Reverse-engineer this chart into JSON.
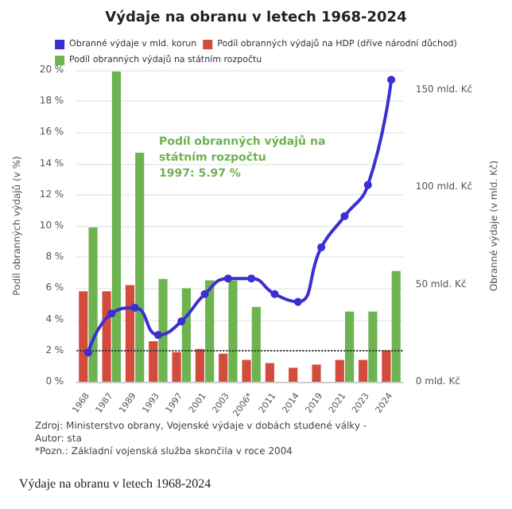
{
  "chart_data": {
    "type": "bar",
    "title": "Výdaje na obranu v letech 1968-2024",
    "ylabel": "Podíl obranných výdajů (v %)",
    "y2label": "Obranné výdaje (v mld. Kč)",
    "categories": [
      "1968",
      "1987",
      "1989",
      "1993",
      "1997",
      "2001",
      "2003",
      "2006*",
      "2011",
      "2014",
      "2019",
      "2021",
      "2023",
      "2024"
    ],
    "series": [
      {
        "name": "Obranné výdaje v mld. korun",
        "type": "line",
        "axis": "y2",
        "color": "#3b2fd3",
        "values": [
          15,
          35,
          38,
          24,
          31,
          45,
          53,
          53,
          45,
          41,
          69,
          85,
          101,
          155
        ]
      },
      {
        "name": "Podíl obranných výdajů na HDP (dříve národní důchod)",
        "color": "#d24b3c",
        "values": [
          5.8,
          5.8,
          6.2,
          2.6,
          1.9,
          2.1,
          1.8,
          1.4,
          1.2,
          0.9,
          1.1,
          1.4,
          1.4,
          2.0
        ]
      },
      {
        "name": "Podíl obranných výdajů na státním rozpočtu",
        "color": "#6db34f",
        "values": [
          9.9,
          19.9,
          14.7,
          6.6,
          6.0,
          6.5,
          6.5,
          4.8,
          null,
          null,
          null,
          4.5,
          4.5,
          7.1
        ]
      }
    ],
    "ylim": [
      0,
      20
    ],
    "yticks": [
      {
        "value": 0,
        "label": "0 %"
      },
      {
        "value": 2,
        "label": "2 %"
      },
      {
        "value": 4,
        "label": "4 %"
      },
      {
        "value": 6,
        "label": "6 %"
      },
      {
        "value": 8,
        "label": "8 %"
      },
      {
        "value": 10,
        "label": "10 %"
      },
      {
        "value": 12,
        "label": "12 %"
      },
      {
        "value": 14,
        "label": "14 %"
      },
      {
        "value": 16,
        "label": "16 %"
      },
      {
        "value": 18,
        "label": "18 %"
      },
      {
        "value": 20,
        "label": "20 %"
      }
    ],
    "y2lim": [
      0,
      160
    ],
    "y2ticks": [
      {
        "value": 0,
        "label": "0 mld. Kč"
      },
      {
        "value": 50,
        "label": "50 mld. Kč"
      },
      {
        "value": 100,
        "label": "100 mld. Kč"
      },
      {
        "value": 150,
        "label": "150 mld. Kč"
      }
    ],
    "ref_lines": [
      {
        "axis": "y",
        "value": 2,
        "color": "#333333",
        "line_style": "dotted"
      }
    ],
    "grid": "y",
    "legend": "top",
    "marker": "circle",
    "annotations": [
      "Podíl obranných výdajů na\nstátním rozpočtu\n1997: 5.97 %",
      "Zdroj: Ministerstvo obrany, Vojenské výdaje v dobách studené války -\nAutor: sta",
      "*Pozn.: Základní vojenská služba skončila v roce 2004",
      "Výdaje na obranu v letech 1968-2024"
    ]
  }
}
